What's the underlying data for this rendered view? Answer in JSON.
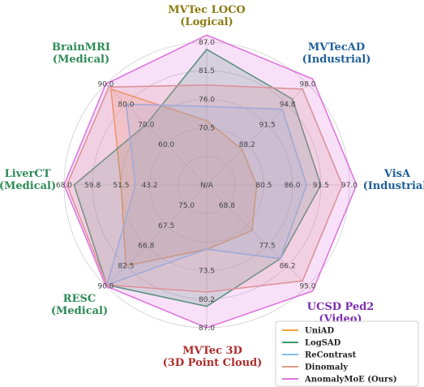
{
  "chart_data": {
    "type": "radar",
    "axes": [
      {
        "line1": "MVTec LOCO",
        "line2": "(Logical)",
        "color": "#8a7a10",
        "ticks": [
          "N/A",
          "70.5",
          "76.0",
          "81.5",
          "87.0"
        ]
      },
      {
        "line1": "MVTecAD",
        "line2": "(Industrial)",
        "color": "#1f5f99",
        "ticks": [
          "N/A",
          "88.2",
          "91.5",
          "94.8",
          "98.0"
        ]
      },
      {
        "line1": "VisA",
        "line2": "(Industrial)",
        "color": "#1f5f99",
        "ticks": [
          "N/A",
          "80.5",
          "86.0",
          "91.5",
          "97.0"
        ]
      },
      {
        "line1": "UCSD Ped2",
        "line2": "(Video)",
        "color": "#7a2fb0",
        "ticks": [
          "N/A",
          "77.5",
          "86.2",
          "95.0"
        ]
      },
      {
        "line1": "MVTec 3D",
        "line2": "(3D Point Cloud)",
        "color": "#b02b2b",
        "ticks": [
          "N/A",
          "73.5",
          "80.2",
          "87.0"
        ]
      },
      {
        "line1": "RESC",
        "line2": "(Medical)",
        "color": "#2e8b57",
        "ticks": [
          "66.8",
          "82.5",
          "90.0"
        ]
      },
      {
        "line1": "LiverCT",
        "line2": "(Medical)",
        "color": "#2e8b57",
        "ticks": [
          "43.2",
          "51.5",
          "59.8",
          "68.0"
        ]
      },
      {
        "line1": "BrainMRI",
        "line2": "(Medical)",
        "color": "#2e8b57",
        "ticks": [
          "60.0",
          "70.0",
          "80.0",
          "90.0"
        ]
      }
    ],
    "extra_ticks": [
      "67.5",
      "75.0",
      "68.8"
    ],
    "series": [
      {
        "name": "UniAD",
        "color": "#f4a13f",
        "values": [
          0.45,
          0.35,
          0.35,
          0.45,
          0.45,
          0.8,
          0.6,
          0.95
        ]
      },
      {
        "name": "LogSAD",
        "color": "#3a9a6a",
        "values": [
          0.95,
          0.85,
          0.8,
          0.73,
          0.85,
          0.99,
          0.93,
          0.6
        ]
      },
      {
        "name": "ReContrast",
        "color": "#7cc0ea",
        "values": [
          0.55,
          0.75,
          0.7,
          0.73,
          0.45,
          0.99,
          0.5,
          0.8
        ]
      },
      {
        "name": "Dinomaly",
        "color": "#dd9a88",
        "values": [
          0.7,
          0.95,
          0.95,
          0.95,
          0.75,
          0.99,
          0.98,
          0.97
        ]
      },
      {
        "name": "AnomalyMoE (Ours)",
        "color": "#dd77dd",
        "values": [
          1.05,
          1.05,
          1.05,
          1.05,
          1.0,
          1.0,
          1.0,
          1.0
        ]
      }
    ],
    "legend_position": "bottom-right",
    "grid": true
  }
}
